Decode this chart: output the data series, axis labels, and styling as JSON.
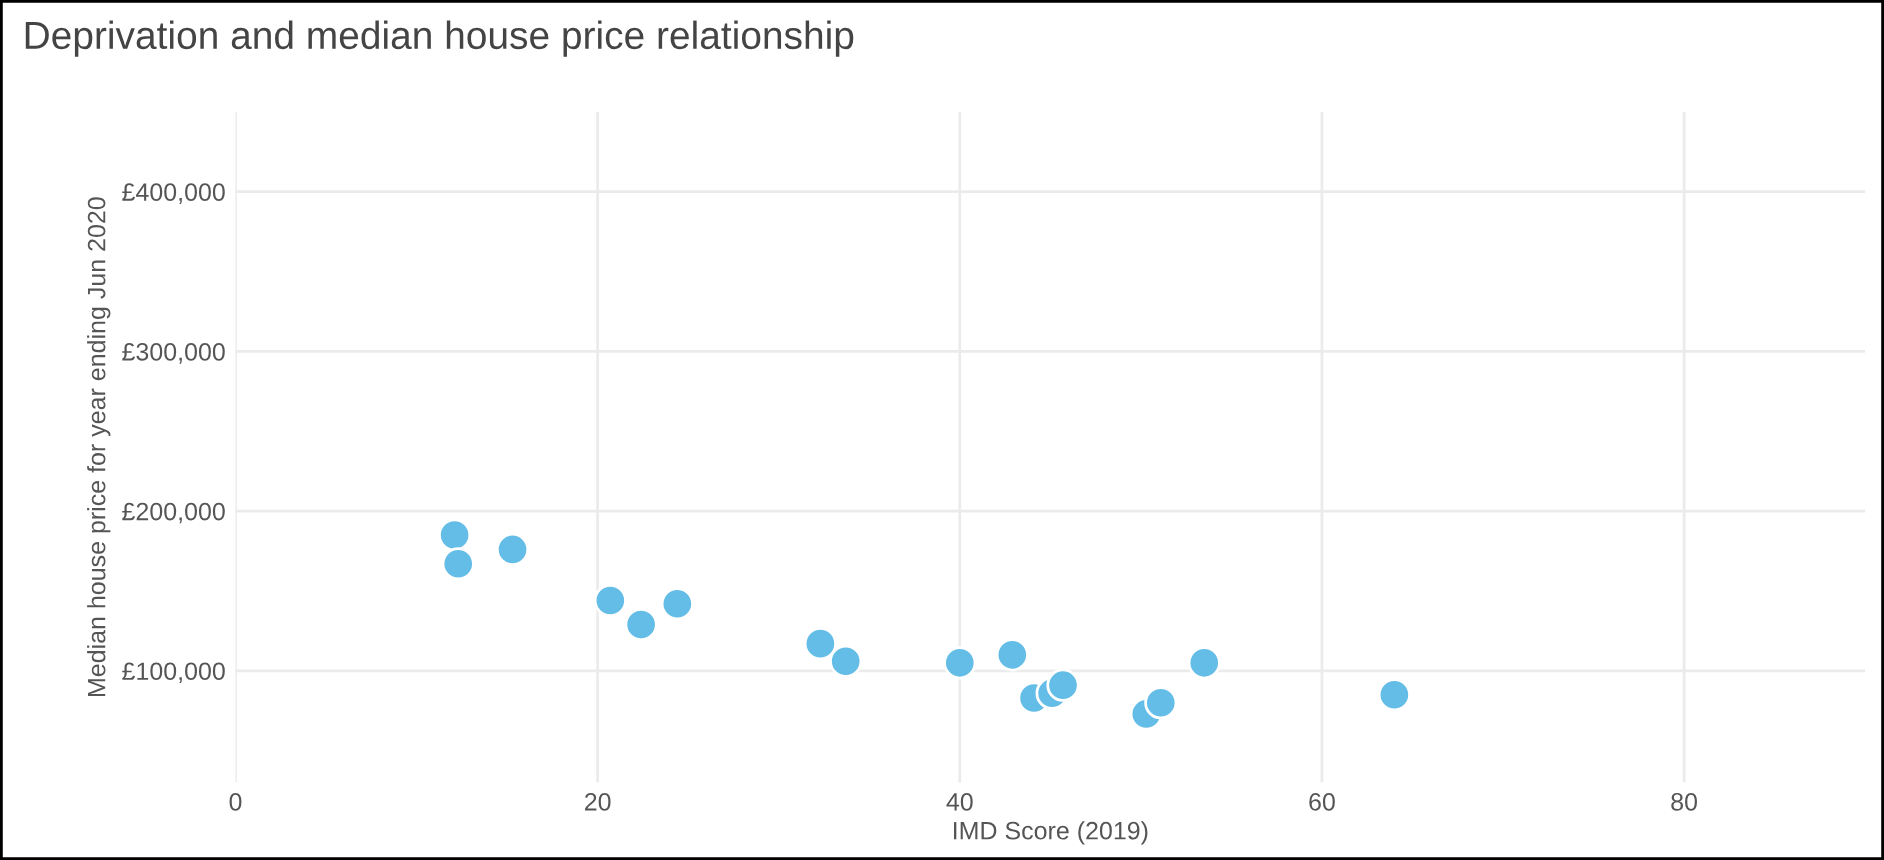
{
  "chart_data": {
    "type": "scatter",
    "title": "Deprivation and median house price relationship",
    "xlabel": "IMD Score (2019)",
    "ylabel": "Median house price for year ending Jun 2020",
    "x": [
      12.1,
      12.3,
      15.3,
      20.7,
      22.4,
      24.4,
      32.3,
      33.7,
      40.0,
      42.9,
      44.1,
      45.1,
      45.7,
      50.3,
      51.1,
      53.5,
      64.0
    ],
    "series": [
      {
        "color": "#64bde6",
        "values": [
          185000,
          167000,
          176000,
          144000,
          129000,
          142000,
          117000,
          106000,
          105000,
          110000,
          83000,
          86000,
          91000,
          73000,
          80000,
          105000,
          85000
        ]
      }
    ],
    "xlim": [
      0,
      90
    ],
    "ylim": [
      30000,
      450000
    ],
    "xticks": [
      0,
      20,
      40,
      60,
      80
    ],
    "yticks": [
      {
        "value": 100000,
        "label": "£100,000"
      },
      {
        "value": 200000,
        "label": "£200,000"
      },
      {
        "value": 300000,
        "label": "£300,000"
      },
      {
        "value": 400000,
        "label": "£400,000"
      }
    ],
    "grid": true,
    "marker": "circle"
  }
}
